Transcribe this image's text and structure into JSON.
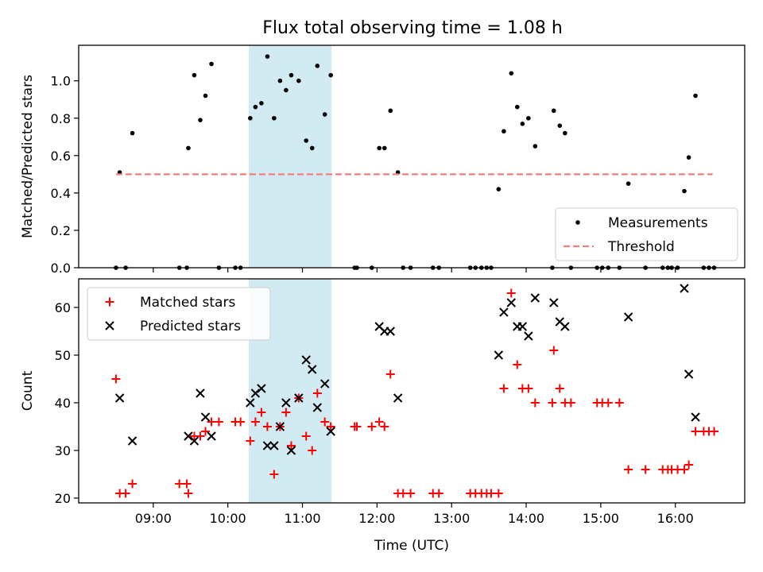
{
  "figure_title": "Flux total observing time = 1.08 h",
  "chart_data": [
    {
      "type": "scatter",
      "panel": "top",
      "ylabel": "Matched/Predicted stars",
      "ylim": [
        0,
        1.19
      ],
      "yticks": [
        0.0,
        0.2,
        0.4,
        0.6,
        0.8,
        1.0
      ],
      "ytick_labels": [
        "0.0",
        "0.2",
        "0.4",
        "0.6",
        "0.8",
        "1.0"
      ],
      "xlim": [
        8.0,
        16.93
      ],
      "shaded_span": [
        10.28,
        11.39
      ],
      "legend": {
        "position": "bottom-right",
        "items": [
          "Measurements",
          "Threshold"
        ]
      },
      "series": [
        {
          "name": "Measurements",
          "marker": "dot",
          "color": "#000000",
          "points": [
            [
              8.5,
              0
            ],
            [
              8.55,
              0.51
            ],
            [
              8.63,
              0
            ],
            [
              8.72,
              0.72
            ],
            [
              9.35,
              0
            ],
            [
              9.45,
              0
            ],
            [
              9.47,
              0.64
            ],
            [
              9.55,
              1.03
            ],
            [
              9.63,
              0.79
            ],
            [
              9.7,
              0.92
            ],
            [
              9.78,
              1.09
            ],
            [
              9.88,
              0
            ],
            [
              10.1,
              0
            ],
            [
              10.17,
              0
            ],
            [
              10.3,
              0.8
            ],
            [
              10.37,
              0.86
            ],
            [
              10.45,
              0.88
            ],
            [
              10.53,
              1.13
            ],
            [
              10.62,
              0.8
            ],
            [
              10.7,
              1.0
            ],
            [
              10.78,
              0.95
            ],
            [
              10.85,
              1.03
            ],
            [
              10.95,
              1.0
            ],
            [
              11.05,
              0.68
            ],
            [
              11.13,
              0.64
            ],
            [
              11.2,
              1.08
            ],
            [
              11.3,
              0.82
            ],
            [
              11.38,
              1.03
            ],
            [
              11.7,
              0
            ],
            [
              11.73,
              0
            ],
            [
              11.93,
              0
            ],
            [
              12.03,
              0.64
            ],
            [
              12.1,
              0.64
            ],
            [
              12.18,
              0.84
            ],
            [
              12.28,
              0.51
            ],
            [
              12.35,
              0
            ],
            [
              12.45,
              0
            ],
            [
              12.75,
              0
            ],
            [
              12.83,
              0
            ],
            [
              13.25,
              0
            ],
            [
              13.32,
              0
            ],
            [
              13.4,
              0
            ],
            [
              13.47,
              0
            ],
            [
              13.53,
              0
            ],
            [
              13.63,
              0.42
            ],
            [
              13.7,
              0.73
            ],
            [
              13.8,
              1.04
            ],
            [
              13.88,
              0.86
            ],
            [
              13.95,
              0.77
            ],
            [
              14.03,
              0.8
            ],
            [
              14.12,
              0.65
            ],
            [
              14.35,
              0
            ],
            [
              14.37,
              0.84
            ],
            [
              14.45,
              0.76
            ],
            [
              14.52,
              0.72
            ],
            [
              14.6,
              0
            ],
            [
              14.95,
              0
            ],
            [
              15.02,
              0
            ],
            [
              15.1,
              0
            ],
            [
              15.25,
              0
            ],
            [
              15.37,
              0.45
            ],
            [
              15.6,
              0
            ],
            [
              15.83,
              0
            ],
            [
              15.9,
              0
            ],
            [
              15.95,
              0
            ],
            [
              16.03,
              0
            ],
            [
              16.12,
              0.41
            ],
            [
              16.18,
              0.59
            ],
            [
              16.27,
              0.92
            ],
            [
              16.38,
              0
            ],
            [
              16.45,
              0
            ],
            [
              16.52,
              0
            ]
          ]
        },
        {
          "name": "Threshold",
          "style": "dashed-line",
          "color": "#f08080",
          "x": [
            8.5,
            16.5
          ],
          "values": [
            0.5,
            0.5
          ]
        }
      ]
    },
    {
      "type": "scatter",
      "panel": "bottom",
      "xlabel": "Time (UTC)",
      "ylabel": "Count",
      "ylim": [
        19.0,
        66.0
      ],
      "yticks": [
        20,
        30,
        40,
        50,
        60
      ],
      "ytick_labels": [
        "20",
        "30",
        "40",
        "50",
        "60"
      ],
      "xlim": [
        8.0,
        16.93
      ],
      "xticks": [
        9,
        10,
        11,
        12,
        13,
        14,
        15,
        16
      ],
      "xtick_labels": [
        "09:00",
        "10:00",
        "11:00",
        "12:00",
        "13:00",
        "14:00",
        "15:00",
        "16:00"
      ],
      "shaded_span": [
        10.28,
        11.39
      ],
      "legend": {
        "position": "top-left",
        "items": [
          "Matched stars",
          "Predicted stars"
        ]
      },
      "series": [
        {
          "name": "Matched stars",
          "marker": "plus",
          "color": "#ff0000",
          "points": [
            [
              8.5,
              45
            ],
            [
              8.55,
              21
            ],
            [
              8.63,
              21
            ],
            [
              8.72,
              23
            ],
            [
              9.35,
              23
            ],
            [
              9.45,
              23
            ],
            [
              9.47,
              21
            ],
            [
              9.55,
              33
            ],
            [
              9.63,
              33
            ],
            [
              9.7,
              34
            ],
            [
              9.78,
              36
            ],
            [
              9.88,
              36
            ],
            [
              10.1,
              36
            ],
            [
              10.17,
              36
            ],
            [
              10.3,
              32
            ],
            [
              10.37,
              36
            ],
            [
              10.45,
              38
            ],
            [
              10.53,
              35
            ],
            [
              10.62,
              25
            ],
            [
              10.7,
              35
            ],
            [
              10.78,
              38
            ],
            [
              10.85,
              31
            ],
            [
              10.95,
              41
            ],
            [
              11.05,
              33
            ],
            [
              11.13,
              30
            ],
            [
              11.2,
              42
            ],
            [
              11.3,
              36
            ],
            [
              11.38,
              35
            ],
            [
              11.7,
              35
            ],
            [
              11.73,
              35
            ],
            [
              11.93,
              35
            ],
            [
              12.03,
              36
            ],
            [
              12.1,
              35
            ],
            [
              12.18,
              46
            ],
            [
              12.28,
              21
            ],
            [
              12.35,
              21
            ],
            [
              12.45,
              21
            ],
            [
              12.75,
              21
            ],
            [
              12.83,
              21
            ],
            [
              13.25,
              21
            ],
            [
              13.32,
              21
            ],
            [
              13.4,
              21
            ],
            [
              13.47,
              21
            ],
            [
              13.53,
              21
            ],
            [
              13.63,
              21
            ],
            [
              13.7,
              43
            ],
            [
              13.8,
              63
            ],
            [
              13.88,
              48
            ],
            [
              13.95,
              43
            ],
            [
              14.03,
              43
            ],
            [
              14.12,
              40
            ],
            [
              14.35,
              40
            ],
            [
              14.37,
              51
            ],
            [
              14.45,
              43
            ],
            [
              14.52,
              40
            ],
            [
              14.6,
              40
            ],
            [
              14.95,
              40
            ],
            [
              15.02,
              40
            ],
            [
              15.1,
              40
            ],
            [
              15.25,
              40
            ],
            [
              15.37,
              26
            ],
            [
              15.6,
              26
            ],
            [
              15.83,
              26
            ],
            [
              15.9,
              26
            ],
            [
              15.95,
              26
            ],
            [
              16.03,
              26
            ],
            [
              16.12,
              26
            ],
            [
              16.18,
              27
            ],
            [
              16.27,
              34
            ],
            [
              16.38,
              34
            ],
            [
              16.45,
              34
            ],
            [
              16.52,
              34
            ]
          ]
        },
        {
          "name": "Predicted stars",
          "marker": "x",
          "color": "#000000",
          "points": [
            [
              8.55,
              41
            ],
            [
              8.72,
              32
            ],
            [
              9.47,
              33
            ],
            [
              9.55,
              32
            ],
            [
              9.63,
              42
            ],
            [
              9.7,
              37
            ],
            [
              9.78,
              33
            ],
            [
              10.3,
              40
            ],
            [
              10.37,
              42
            ],
            [
              10.45,
              43
            ],
            [
              10.53,
              31
            ],
            [
              10.62,
              31
            ],
            [
              10.7,
              35
            ],
            [
              10.78,
              40
            ],
            [
              10.85,
              30
            ],
            [
              10.95,
              41
            ],
            [
              11.05,
              49
            ],
            [
              11.13,
              47
            ],
            [
              11.2,
              39
            ],
            [
              11.3,
              44
            ],
            [
              11.38,
              34
            ],
            [
              12.03,
              56
            ],
            [
              12.1,
              55
            ],
            [
              12.18,
              55
            ],
            [
              12.28,
              41
            ],
            [
              13.63,
              50
            ],
            [
              13.7,
              59
            ],
            [
              13.8,
              61
            ],
            [
              13.88,
              56
            ],
            [
              13.95,
              56
            ],
            [
              14.03,
              54
            ],
            [
              14.12,
              62
            ],
            [
              14.37,
              61
            ],
            [
              14.45,
              57
            ],
            [
              14.52,
              56
            ],
            [
              15.37,
              58
            ],
            [
              16.12,
              64
            ],
            [
              16.18,
              46
            ],
            [
              16.27,
              37
            ]
          ]
        }
      ]
    }
  ]
}
